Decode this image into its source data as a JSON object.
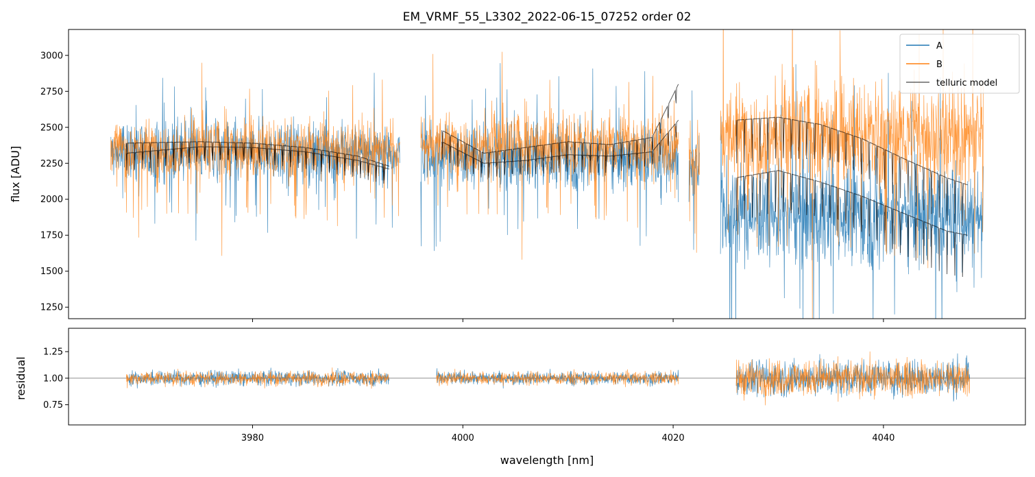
{
  "chart_data": {
    "type": "line",
    "title": "EM_VRMF_55_L3302_2022-06-15_07252  order 02",
    "xlabel": "wavelength [nm]",
    "xlim": [
      3962.5,
      4053.5
    ],
    "xticks": [
      3980,
      4000,
      4020,
      4040
    ],
    "legend": {
      "position": "top-right",
      "entries": [
        "A",
        "B",
        "telluric model"
      ]
    },
    "colors": {
      "A": "#1f77b4",
      "B": "#ff7f0e",
      "model": "#000000",
      "reference": "#808080"
    },
    "panels": [
      {
        "name": "flux",
        "ylabel": "flux [ADU]",
        "ylim": [
          1170,
          3180
        ],
        "yticks": [
          1250,
          1500,
          1750,
          2000,
          2250,
          2500,
          2750,
          3000
        ],
        "segments": [
          {
            "x_start": 3966.5,
            "x_end": 3994.0,
            "A_mean": 2330,
            "B_mean": 2350,
            "noise": 260
          },
          {
            "x_start": 3996.0,
            "x_end": 4020.5,
            "A_mean": 2300,
            "B_mean": 2380,
            "noise": 280
          },
          {
            "x_start": 4021.5,
            "x_end": 4022.5,
            "A_mean": 2200,
            "B_mean": 2300,
            "noise": 300
          },
          {
            "x_start": 4024.5,
            "x_end": 4049.5,
            "A_mean": 1900,
            "B_mean": 2450,
            "noise": 450
          }
        ],
        "telluric_model": [
          {
            "x": [
              3968,
              3975,
              3980,
              3985,
              3990,
              3993
            ],
            "A": [
              2320,
              2365,
              2360,
              2330,
              2270,
              2210
            ],
            "B": [
              2390,
              2400,
              2390,
              2360,
              2300,
              2230
            ]
          },
          {
            "x": [
              3998,
              4002,
              4006,
              4010,
              4014,
              4018,
              4020.5
            ],
            "A": [
              2400,
              2250,
              2270,
              2310,
              2300,
              2330,
              2550
            ],
            "B": [
              2480,
              2320,
              2360,
              2400,
              2380,
              2430,
              2800
            ]
          },
          {
            "x": [
              4026,
              4030,
              4034,
              4038,
              4042,
              4046,
              4048
            ],
            "A": [
              2150,
              2200,
              2120,
              2020,
              1900,
              1780,
              1750
            ],
            "B": [
              2550,
              2570,
              2520,
              2420,
              2280,
              2150,
              2100
            ]
          }
        ]
      },
      {
        "name": "residual",
        "ylabel": "residual",
        "ylim": [
          0.56,
          1.47
        ],
        "yticks": [
          0.75,
          1.0,
          1.25
        ],
        "ytick_labels": [
          "0.75",
          "1.00",
          "1.25"
        ],
        "reference_line": 1.0,
        "segments": [
          {
            "x_start": 3968,
            "x_end": 3993,
            "noise": 0.09
          },
          {
            "x_start": 3997.5,
            "x_end": 4020.5,
            "noise": 0.08
          },
          {
            "x_start": 4026,
            "x_end": 4048.2,
            "noise": 0.22
          }
        ]
      }
    ]
  }
}
